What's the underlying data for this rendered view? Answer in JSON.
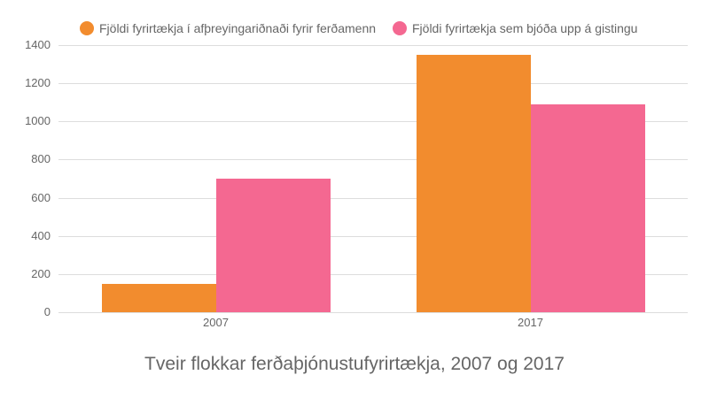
{
  "chart_data": {
    "type": "bar",
    "title": "Tveir flokkar ferðaþjónustufyrirtækja, 2007 og 2017",
    "xlabel": "",
    "ylabel": "",
    "categories": [
      "2007",
      "2017"
    ],
    "series": [
      {
        "name": "Fjöldi fyrirtækja í afþreyingariðnaði fyrir ferðamenn",
        "color": "#f28c2e",
        "values": [
          150,
          1350
        ]
      },
      {
        "name": "Fjöldi fyrirtækja sem bjóða upp á gistingu",
        "color": "#f46891",
        "values": [
          700,
          1090
        ]
      }
    ],
    "ylim": [
      0,
      1400
    ],
    "yticks": [
      0,
      200,
      400,
      600,
      800,
      1000,
      1200,
      1400
    ],
    "grid": true,
    "legend_position": "top"
  },
  "legend": [
    {
      "label": "Fjöldi fyrirtækja í afþreyingariðnaði fyrir ferðamenn",
      "color": "#f28c2e"
    },
    {
      "label": "Fjöldi fyrirtækja sem bjóða upp á gistingu",
      "color": "#f46891"
    }
  ],
  "title": "Tveir flokkar ferðaþjónustufyrirtækja, 2007 og 2017"
}
